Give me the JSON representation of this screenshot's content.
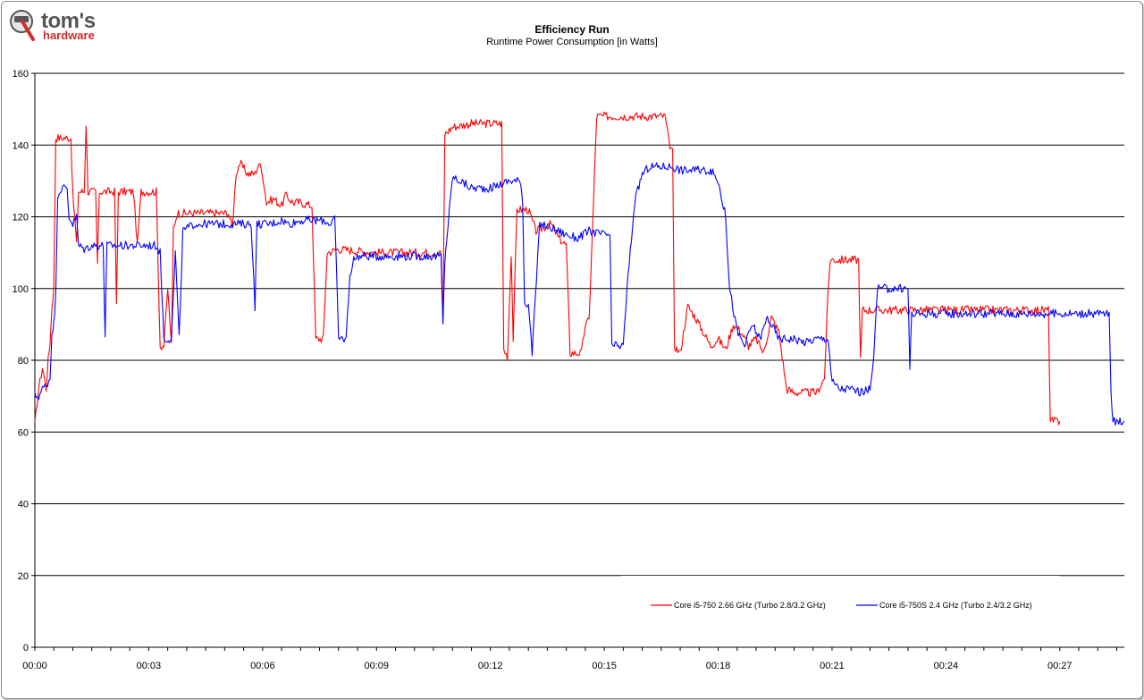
{
  "brand": {
    "logo_line1": "tom's",
    "logo_line2": "hardware",
    "icon": "hammer-logo-icon"
  },
  "chart_data": {
    "type": "line",
    "title": "Efficiency Run",
    "subtitle": "Runtime Power Consumption [in Watts]",
    "xlabel": "",
    "ylabel": "",
    "x_unit": "minutes",
    "xlim": [
      0,
      28.7
    ],
    "ylim": [
      0,
      160
    ],
    "yticks": [
      0,
      20,
      40,
      60,
      80,
      100,
      120,
      140,
      160
    ],
    "xticks": [
      "00:00",
      "00:03",
      "00:06",
      "00:09",
      "00:12",
      "00:15",
      "00:18",
      "00:21",
      "00:24",
      "00:27"
    ],
    "xtick_values": [
      0,
      3,
      6,
      9,
      12,
      15,
      18,
      21,
      24,
      27
    ],
    "grid": "horizontal major gridlines",
    "legend_position": "bottom-right inside plot",
    "series": [
      {
        "name": "Core i5-750 2.66 GHz (Turbo 2.8/3.2 GHz)",
        "color": "#ff0000",
        "points": [
          [
            0.0,
            62
          ],
          [
            0.1,
            72
          ],
          [
            0.2,
            78
          ],
          [
            0.3,
            72
          ],
          [
            0.35,
            80
          ],
          [
            0.4,
            85
          ],
          [
            0.45,
            95
          ],
          [
            0.5,
            100
          ],
          [
            0.55,
            142
          ],
          [
            0.7,
            142
          ],
          [
            0.8,
            142
          ],
          [
            0.85,
            142
          ],
          [
            0.95,
            142
          ],
          [
            1.0,
            126
          ],
          [
            1.05,
            120
          ],
          [
            1.1,
            112
          ],
          [
            1.15,
            127
          ],
          [
            1.3,
            127
          ],
          [
            1.35,
            146
          ],
          [
            1.4,
            127
          ],
          [
            1.6,
            127
          ],
          [
            1.65,
            107
          ],
          [
            1.7,
            127
          ],
          [
            2.1,
            127
          ],
          [
            2.15,
            95
          ],
          [
            2.2,
            127
          ],
          [
            2.6,
            127
          ],
          [
            2.7,
            112
          ],
          [
            2.8,
            127
          ],
          [
            3.2,
            127
          ],
          [
            3.3,
            84
          ],
          [
            3.4,
            84
          ],
          [
            3.5,
            100
          ],
          [
            3.6,
            84
          ],
          [
            3.65,
            117
          ],
          [
            3.75,
            121
          ],
          [
            4.5,
            121
          ],
          [
            5.1,
            121
          ],
          [
            5.2,
            117
          ],
          [
            5.3,
            132
          ],
          [
            5.4,
            135
          ],
          [
            5.6,
            132
          ],
          [
            5.8,
            132
          ],
          [
            5.9,
            135
          ],
          [
            6.0,
            132
          ],
          [
            6.1,
            124
          ],
          [
            6.3,
            125
          ],
          [
            6.5,
            123
          ],
          [
            6.6,
            126
          ],
          [
            6.8,
            124
          ],
          [
            7.0,
            124
          ],
          [
            7.3,
            123
          ],
          [
            7.4,
            86
          ],
          [
            7.6,
            86
          ],
          [
            7.7,
            110
          ],
          [
            8.0,
            111
          ],
          [
            9.0,
            110
          ],
          [
            10.0,
            110
          ],
          [
            10.7,
            110
          ],
          [
            10.75,
            90
          ],
          [
            10.8,
            143
          ],
          [
            11.0,
            145
          ],
          [
            11.5,
            146
          ],
          [
            12.0,
            146
          ],
          [
            12.3,
            146
          ],
          [
            12.35,
            83
          ],
          [
            12.45,
            81
          ],
          [
            12.55,
            110
          ],
          [
            12.6,
            86
          ],
          [
            12.7,
            122
          ],
          [
            13.0,
            122
          ],
          [
            13.2,
            116
          ],
          [
            13.4,
            117
          ],
          [
            13.6,
            118
          ],
          [
            13.8,
            114
          ],
          [
            14.0,
            112
          ],
          [
            14.1,
            82
          ],
          [
            14.4,
            82
          ],
          [
            14.5,
            90
          ],
          [
            14.6,
            91
          ],
          [
            14.8,
            148
          ],
          [
            15.0,
            148
          ],
          [
            15.5,
            148
          ],
          [
            16.0,
            148
          ],
          [
            16.4,
            148
          ],
          [
            16.6,
            148
          ],
          [
            16.7,
            141
          ],
          [
            16.8,
            138
          ],
          [
            16.85,
            84
          ],
          [
            17.0,
            82
          ],
          [
            17.2,
            95
          ],
          [
            17.4,
            92
          ],
          [
            17.6,
            88
          ],
          [
            17.8,
            84
          ],
          [
            18.0,
            86
          ],
          [
            18.2,
            83
          ],
          [
            18.4,
            90
          ],
          [
            18.6,
            88
          ],
          [
            18.8,
            84
          ],
          [
            19.0,
            86
          ],
          [
            19.2,
            82
          ],
          [
            19.4,
            92
          ],
          [
            19.6,
            88
          ],
          [
            19.8,
            72
          ],
          [
            20.0,
            71
          ],
          [
            20.3,
            71
          ],
          [
            20.6,
            71
          ],
          [
            20.8,
            75
          ],
          [
            20.9,
            100
          ],
          [
            20.95,
            108
          ],
          [
            21.2,
            108
          ],
          [
            21.5,
            108
          ],
          [
            21.7,
            108
          ],
          [
            21.75,
            80
          ],
          [
            21.8,
            94
          ],
          [
            22.5,
            94
          ],
          [
            23.0,
            94
          ],
          [
            24.0,
            94
          ],
          [
            25.0,
            94
          ],
          [
            26.0,
            94
          ],
          [
            26.5,
            94
          ],
          [
            26.7,
            94
          ],
          [
            26.75,
            63
          ],
          [
            26.8,
            63
          ],
          [
            27.0,
            63
          ]
        ]
      },
      {
        "name": "Core i5-750S 2.4 GHz (Turbo 2.4/3.2 GHz)",
        "color": "#0000ff",
        "points": [
          [
            0.0,
            70
          ],
          [
            0.1,
            70
          ],
          [
            0.2,
            72
          ],
          [
            0.3,
            73
          ],
          [
            0.4,
            75
          ],
          [
            0.45,
            88
          ],
          [
            0.5,
            90
          ],
          [
            0.55,
            98
          ],
          [
            0.6,
            126
          ],
          [
            0.7,
            128
          ],
          [
            0.8,
            128
          ],
          [
            0.85,
            128
          ],
          [
            0.9,
            120
          ],
          [
            1.0,
            118
          ],
          [
            1.1,
            120
          ],
          [
            1.15,
            112
          ],
          [
            1.3,
            111
          ],
          [
            1.5,
            112
          ],
          [
            1.8,
            112
          ],
          [
            1.85,
            87
          ],
          [
            1.9,
            112
          ],
          [
            2.3,
            112
          ],
          [
            2.6,
            112
          ],
          [
            3.0,
            112
          ],
          [
            3.2,
            112
          ],
          [
            3.3,
            110
          ],
          [
            3.4,
            86
          ],
          [
            3.6,
            86
          ],
          [
            3.7,
            110
          ],
          [
            3.8,
            86
          ],
          [
            3.9,
            116
          ],
          [
            4.2,
            118
          ],
          [
            4.5,
            118
          ],
          [
            5.0,
            118
          ],
          [
            5.5,
            118
          ],
          [
            5.7,
            118
          ],
          [
            5.8,
            95
          ],
          [
            5.85,
            118
          ],
          [
            6.2,
            118
          ],
          [
            6.5,
            119
          ],
          [
            6.7,
            118
          ],
          [
            7.0,
            119
          ],
          [
            7.4,
            119
          ],
          [
            7.6,
            119
          ],
          [
            7.8,
            118
          ],
          [
            7.9,
            120
          ],
          [
            8.0,
            86
          ],
          [
            8.2,
            86
          ],
          [
            8.3,
            104
          ],
          [
            8.4,
            108
          ],
          [
            8.5,
            109
          ],
          [
            9.0,
            109
          ],
          [
            9.5,
            109
          ],
          [
            10.0,
            109
          ],
          [
            10.5,
            109
          ],
          [
            10.7,
            109
          ],
          [
            10.75,
            90
          ],
          [
            10.8,
            108
          ],
          [
            11.0,
            131
          ],
          [
            11.2,
            130
          ],
          [
            11.5,
            128
          ],
          [
            12.0,
            128
          ],
          [
            12.5,
            130
          ],
          [
            12.8,
            130
          ],
          [
            12.85,
            124
          ],
          [
            12.9,
            96
          ],
          [
            13.0,
            96
          ],
          [
            13.1,
            82
          ],
          [
            13.3,
            118
          ],
          [
            13.6,
            117
          ],
          [
            14.0,
            115
          ],
          [
            14.3,
            114
          ],
          [
            14.6,
            116
          ],
          [
            15.0,
            115
          ],
          [
            15.15,
            115
          ],
          [
            15.2,
            84
          ],
          [
            15.5,
            84
          ],
          [
            15.6,
            100
          ],
          [
            15.8,
            124
          ],
          [
            16.0,
            132
          ],
          [
            16.2,
            134
          ],
          [
            16.5,
            134
          ],
          [
            16.8,
            134
          ],
          [
            17.0,
            133
          ],
          [
            17.5,
            133
          ],
          [
            17.8,
            133
          ],
          [
            18.0,
            130
          ],
          [
            18.2,
            120
          ],
          [
            18.3,
            100
          ],
          [
            18.5,
            88
          ],
          [
            18.7,
            84
          ],
          [
            18.9,
            90
          ],
          [
            19.1,
            86
          ],
          [
            19.3,
            92
          ],
          [
            19.6,
            86
          ],
          [
            19.8,
            86
          ],
          [
            20.0,
            86
          ],
          [
            20.3,
            85
          ],
          [
            20.6,
            86
          ],
          [
            20.9,
            86
          ],
          [
            21.0,
            74
          ],
          [
            21.2,
            72
          ],
          [
            21.5,
            72
          ],
          [
            21.8,
            71
          ],
          [
            22.0,
            72
          ],
          [
            22.1,
            82
          ],
          [
            22.2,
            100
          ],
          [
            22.5,
            100
          ],
          [
            22.8,
            100
          ],
          [
            23.0,
            100
          ],
          [
            23.05,
            78
          ],
          [
            23.1,
            93
          ],
          [
            23.5,
            93
          ],
          [
            24.0,
            93
          ],
          [
            24.5,
            93
          ],
          [
            25.0,
            93
          ],
          [
            25.5,
            93
          ],
          [
            26.0,
            93
          ],
          [
            26.5,
            93
          ],
          [
            27.0,
            93
          ],
          [
            27.5,
            93
          ],
          [
            28.0,
            93
          ],
          [
            28.3,
            93
          ],
          [
            28.35,
            70
          ],
          [
            28.4,
            63
          ],
          [
            28.5,
            63
          ],
          [
            28.7,
            63
          ]
        ]
      }
    ]
  }
}
